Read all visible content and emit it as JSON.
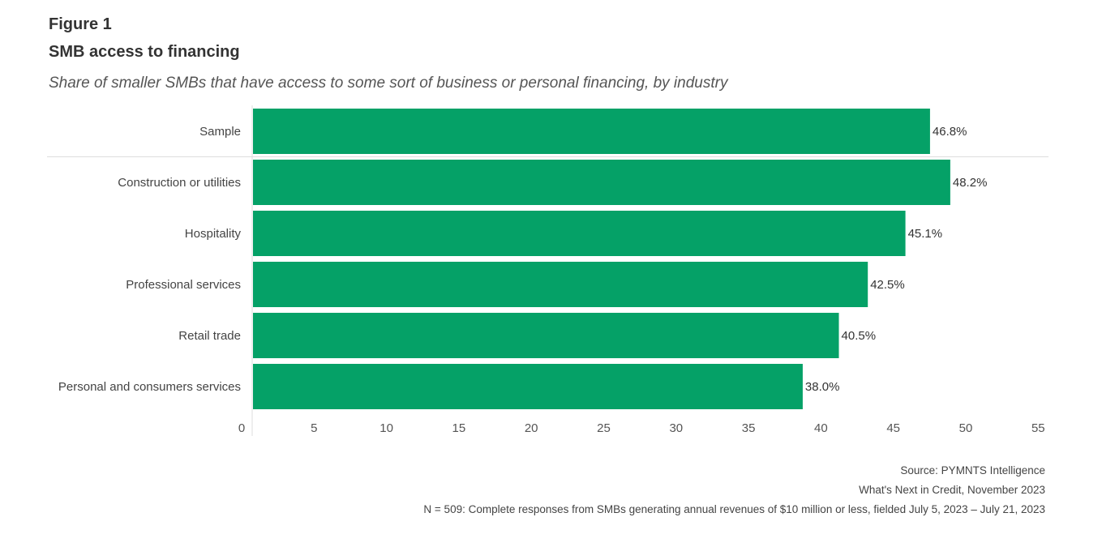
{
  "figure_label": "Figure 1",
  "chart_data": {
    "type": "bar",
    "orientation": "horizontal",
    "title": "SMB access to financing",
    "subtitle": "Share of smaller SMBs that have access to some sort of business or personal financing, by industry",
    "categories": [
      "Sample",
      "Construction or utilities",
      "Hospitality",
      "Professional services",
      "Retail trade",
      "Personal and consumers services"
    ],
    "values": [
      46.8,
      48.2,
      45.1,
      42.5,
      40.5,
      38.0
    ],
    "data_labels": [
      "46.8%",
      "48.2%",
      "45.1%",
      "42.5%",
      "40.5%",
      "38.0%"
    ],
    "xlim": [
      0,
      55
    ],
    "xticks": [
      "0",
      "5",
      "10",
      "15",
      "20",
      "25",
      "30",
      "35",
      "40",
      "45",
      "50",
      "55"
    ],
    "bar_color": "#05a167",
    "grid": false
  },
  "footer": {
    "source": "Source: PYMNTS Intelligence",
    "report": "What's Next in Credit, November 2023",
    "note": "N = 509: Complete responses from SMBs generating annual revenues of $10 million or less, fielded July 5, 2023 – July 21, 2023"
  }
}
